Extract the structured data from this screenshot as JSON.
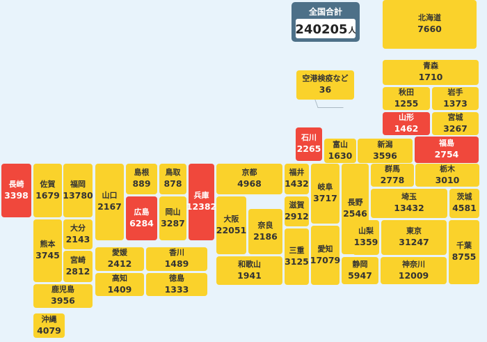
{
  "total": {
    "label": "全国合計",
    "value": "240205",
    "unit": "人"
  },
  "colors": {
    "normal": "#fad22b",
    "highlight": "#f0483c",
    "background": "#e8f3fb",
    "total_panel": "#4d7088"
  },
  "prefectures": [
    {
      "id": "hokkaido",
      "name": "北海道",
      "value": "7660",
      "hl": false
    },
    {
      "id": "airport",
      "name": "空港検疫など",
      "value": "36",
      "hl": false
    },
    {
      "id": "aomori",
      "name": "青森",
      "value": "1710",
      "hl": false
    },
    {
      "id": "akita",
      "name": "秋田",
      "value": "1255",
      "hl": false
    },
    {
      "id": "iwate",
      "name": "岩手",
      "value": "1373",
      "hl": false
    },
    {
      "id": "yamagata",
      "name": "山形",
      "value": "1462",
      "hl": true
    },
    {
      "id": "miyagi",
      "name": "宮城",
      "value": "3267",
      "hl": false
    },
    {
      "id": "ishikawa",
      "name": "石川",
      "value": "2265",
      "hl": true
    },
    {
      "id": "toyama",
      "name": "富山",
      "value": "1630",
      "hl": false
    },
    {
      "id": "niigata",
      "name": "新潟",
      "value": "3596",
      "hl": false
    },
    {
      "id": "fukushima",
      "name": "福島",
      "value": "2754",
      "hl": true
    },
    {
      "id": "nagasaki",
      "name": "長崎",
      "value": "3398",
      "hl": true
    },
    {
      "id": "saga",
      "name": "佐賀",
      "value": "1679",
      "hl": false
    },
    {
      "id": "fukuoka",
      "name": "福岡",
      "value": "13780",
      "hl": false
    },
    {
      "id": "yamaguchi",
      "name": "山口",
      "value": "2167",
      "hl": false
    },
    {
      "id": "shimane",
      "name": "島根",
      "value": "889",
      "hl": false
    },
    {
      "id": "tottori",
      "name": "鳥取",
      "value": "878",
      "hl": false
    },
    {
      "id": "hyogo",
      "name": "兵庫",
      "value": "12382",
      "hl": true
    },
    {
      "id": "kyoto",
      "name": "京都",
      "value": "4968",
      "hl": false
    },
    {
      "id": "fukui",
      "name": "福井",
      "value": "1432",
      "hl": false
    },
    {
      "id": "gifu",
      "name": "岐阜",
      "value": "3717",
      "hl": false
    },
    {
      "id": "nagano",
      "name": "長野",
      "value": "2546",
      "hl": false
    },
    {
      "id": "gunma",
      "name": "群馬",
      "value": "2778",
      "hl": false
    },
    {
      "id": "tochigi",
      "name": "栃木",
      "value": "3010",
      "hl": false
    },
    {
      "id": "hiroshima",
      "name": "広島",
      "value": "6284",
      "hl": true
    },
    {
      "id": "okayama",
      "name": "岡山",
      "value": "3287",
      "hl": false
    },
    {
      "id": "osaka",
      "name": "大阪",
      "value": "22051",
      "hl": false
    },
    {
      "id": "nara",
      "name": "奈良",
      "value": "2186",
      "hl": false
    },
    {
      "id": "shiga",
      "name": "滋賀",
      "value": "2912",
      "hl": false
    },
    {
      "id": "saitama",
      "name": "埼玉",
      "value": "13432",
      "hl": false
    },
    {
      "id": "ibaraki",
      "name": "茨城",
      "value": "4581",
      "hl": false
    },
    {
      "id": "kumamoto",
      "name": "熊本",
      "value": "3745",
      "hl": false
    },
    {
      "id": "oita",
      "name": "大分",
      "value": "2143",
      "hl": false
    },
    {
      "id": "miyazaki",
      "name": "宮崎",
      "value": "2812",
      "hl": false
    },
    {
      "id": "mie",
      "name": "三重",
      "value": "3125",
      "hl": false
    },
    {
      "id": "aichi",
      "name": "愛知",
      "value": "17079",
      "hl": false
    },
    {
      "id": "yamanashi",
      "name": "山梨",
      "value": "1359",
      "hl": false
    },
    {
      "id": "tokyo",
      "name": "東京",
      "value": "31247",
      "hl": false
    },
    {
      "id": "chiba",
      "name": "千葉",
      "value": "8755",
      "hl": false
    },
    {
      "id": "ehime",
      "name": "愛媛",
      "value": "2412",
      "hl": false
    },
    {
      "id": "kagawa",
      "name": "香川",
      "value": "1489",
      "hl": false
    },
    {
      "id": "kochi",
      "name": "高知",
      "value": "1409",
      "hl": false
    },
    {
      "id": "tokushima",
      "name": "徳島",
      "value": "1333",
      "hl": false
    },
    {
      "id": "wakayama",
      "name": "和歌山",
      "value": "1941",
      "hl": false
    },
    {
      "id": "shizuoka",
      "name": "静岡",
      "value": "5947",
      "hl": false
    },
    {
      "id": "kanagawa",
      "name": "神奈川",
      "value": "12009",
      "hl": false
    },
    {
      "id": "kagoshima",
      "name": "鹿児島",
      "value": "3956",
      "hl": false
    },
    {
      "id": "okinawa",
      "name": "沖縄",
      "value": "4079",
      "hl": false
    }
  ]
}
